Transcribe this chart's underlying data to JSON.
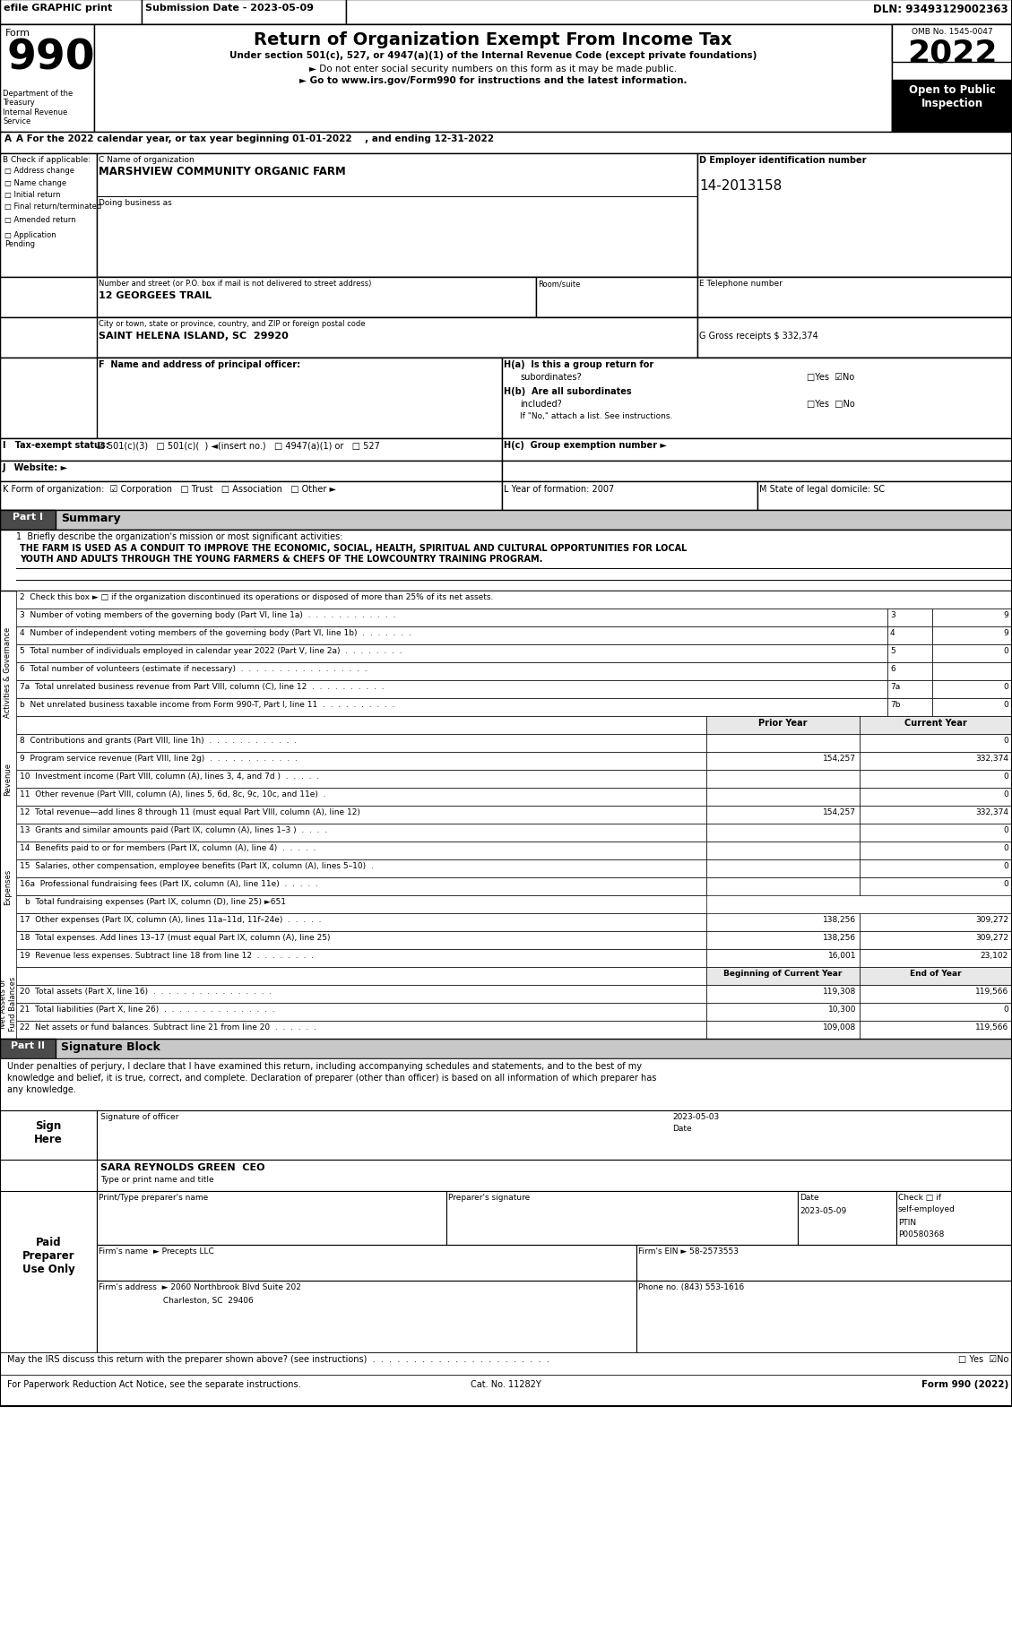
{
  "header_bar_text": "efile GRAPHIC print",
  "submission_date": "Submission Date - 2023-05-09",
  "dln": "DLN: 93493129002363",
  "title": "Return of Organization Exempt From Income Tax",
  "subtitle1": "Under section 501(c), 527, or 4947(a)(1) of the Internal Revenue Code (except private foundations)",
  "subtitle2": "► Do not enter social security numbers on this form as it may be made public.",
  "subtitle3": "► Go to www.irs.gov/Form990 for instructions and the latest information.",
  "omb": "OMB No. 1545-0047",
  "year": "2022",
  "dept": "Department of the\nTreasury\nInternal Revenue\nService",
  "year_line": "A For the 2022 calendar year, or tax year beginning 01-01-2022    , and ending 12-31-2022",
  "check_items": [
    "Address change",
    "Name change",
    "Initial return",
    "Final return/terminated",
    "Amended return",
    "Application\nPending"
  ],
  "org_name": "MARSHVIEW COMMUNITY ORGANIC FARM",
  "dba_label": "Doing business as",
  "address_label": "Number and street (or P.O. box if mail is not delivered to street address)",
  "room_label": "Room/suite",
  "street": "12 GEORGEES TRAIL",
  "city_label": "City or town, state or province, country, and ZIP or foreign postal code",
  "city": "SAINT HELENA ISLAND, SC  29920",
  "ein_label": "D Employer identification number",
  "ein": "14-2013158",
  "e_label": "E Telephone number",
  "g_label": "G Gross receipts $ 332,374",
  "f_label": "F  Name and address of principal officer:",
  "ha_label": "H(a)  Is this a group return for",
  "ha_sub": "subordinates?",
  "hb_label": "H(b)  Are all subordinates",
  "hb_sub": "included?",
  "hb_note": "If \"No,\" attach a list. See instructions.",
  "hc_label": "H(c)  Group exemption number ►",
  "line1_text": "Briefly describe the organization's mission or most significant activities:",
  "line1_value1": "THE FARM IS USED AS A CONDUIT TO IMPROVE THE ECONOMIC, SOCIAL, HEALTH, SPIRITUAL AND CULTURAL OPPORTUNITIES FOR LOCAL",
  "line1_value2": "YOUTH AND ADULTS THROUGH THE YOUNG FARMERS & CHEFS OF THE LOWCOUNTRY TRAINING PROGRAM.",
  "line2_text": "2  Check this box ► □ if the organization discontinued its operations or disposed of more than 25% of its net assets.",
  "line3_text": "3  Number of voting members of the governing body (Part VI, line 1a)  .  .  .  .  .  .  .  .  .  .  .  .",
  "line3_val": "9",
  "line4_text": "4  Number of independent voting members of the governing body (Part VI, line 1b)  .  .  .  .  .  .  .",
  "line4_val": "9",
  "line5_text": "5  Total number of individuals employed in calendar year 2022 (Part V, line 2a)  .  .  .  .  .  .  .  .",
  "line5_val": "0",
  "line6_text": "6  Total number of volunteers (estimate if necessary)  .  .  .  .  .  .  .  .  .  .  .  .  .  .  .  .  .",
  "line6_val": "",
  "line7a_text": "7a  Total unrelated business revenue from Part VIII, column (C), line 12  .  .  .  .  .  .  .  .  .  .",
  "line7a_val": "0",
  "line7b_text": "b  Net unrelated business taxable income from Form 990-T, Part I, line 11  .  .  .  .  .  .  .  .  .  .",
  "line7b_val": "0",
  "line8_text": "8  Contributions and grants (Part VIII, line 1h)  .  .  .  .  .  .  .  .  .  .  .  .",
  "line8_prior": "",
  "line8_curr": "0",
  "line9_text": "9  Program service revenue (Part VIII, line 2g)  .  .  .  .  .  .  .  .  .  .  .  .",
  "line9_prior": "154,257",
  "line9_curr": "332,374",
  "line10_text": "10  Investment income (Part VIII, column (A), lines 3, 4, and 7d )  .  .  .  .  .",
  "line10_prior": "",
  "line10_curr": "0",
  "line11_text": "11  Other revenue (Part VIII, column (A), lines 5, 6d, 8c, 9c, 10c, and 11e)  .",
  "line11_prior": "",
  "line11_curr": "0",
  "line12_text": "12  Total revenue—add lines 8 through 11 (must equal Part VIII, column (A), line 12)",
  "line12_prior": "154,257",
  "line12_curr": "332,374",
  "line13_text": "13  Grants and similar amounts paid (Part IX, column (A), lines 1–3 )  .  .  .  .",
  "line13_prior": "",
  "line13_curr": "0",
  "line14_text": "14  Benefits paid to or for members (Part IX, column (A), line 4)  .  .  .  .  .",
  "line14_prior": "",
  "line14_curr": "0",
  "line15_text": "15  Salaries, other compensation, employee benefits (Part IX, column (A), lines 5–10)  .",
  "line15_prior": "",
  "line15_curr": "0",
  "line16a_text": "16a  Professional fundraising fees (Part IX, column (A), line 11e)  .  .  .  .  .",
  "line16a_prior": "",
  "line16a_curr": "0",
  "line16b_text": "b  Total fundraising expenses (Part IX, column (D), line 25) ►651",
  "line17_text": "17  Other expenses (Part IX, column (A), lines 11a–11d, 11f–24e)  .  .  .  .  .",
  "line17_prior": "138,256",
  "line17_curr": "309,272",
  "line18_text": "18  Total expenses. Add lines 13–17 (must equal Part IX, column (A), line 25)",
  "line18_prior": "138,256",
  "line18_curr": "309,272",
  "line19_text": "19  Revenue less expenses. Subtract line 18 from line 12  .  .  .  .  .  .  .  .",
  "line19_prior": "16,001",
  "line19_curr": "23,102",
  "line20_text": "20  Total assets (Part X, line 16)  .  .  .  .  .  .  .  .  .  .  .  .  .  .  .  .",
  "line20_boc": "119,308",
  "line20_eoy": "119,566",
  "line21_text": "21  Total liabilities (Part X, line 26)  .  .  .  .  .  .  .  .  .  .  .  .  .  .  .",
  "line21_boc": "10,300",
  "line21_eoy": "0",
  "line22_text": "22  Net assets or fund balances. Subtract line 21 from line 20  .  .  .  .  .  .",
  "line22_boc": "109,008",
  "line22_eoy": "119,566",
  "sig_perjury1": "Under penalties of perjury, I declare that I have examined this return, including accompanying schedules and statements, and to the best of my",
  "sig_perjury2": "knowledge and belief, it is true, correct, and complete. Declaration of preparer (other than officer) is based on all information of which preparer has",
  "sig_perjury3": "any knowledge.",
  "sig_date": "2023-05-03",
  "sig_name": "SARA REYNOLDS GREEN  CEO",
  "sig_title_line": "Type or print name and title",
  "preparer_date": "2023-05-09",
  "ptin": "P00580368",
  "firm_name": "► Precepts LLC",
  "firm_ein": "58-2573553",
  "firm_addr": "► 2060 Northbrook Blvd Suite 202",
  "firm_city": "Charleston, SC  29406",
  "phone": "(843) 553-1616",
  "paperwork_text": "For Paperwork Reduction Act Notice, see the separate instructions.",
  "cat_no": "Cat. No. 11282Y",
  "form_footer": "Form 990 (2022)"
}
